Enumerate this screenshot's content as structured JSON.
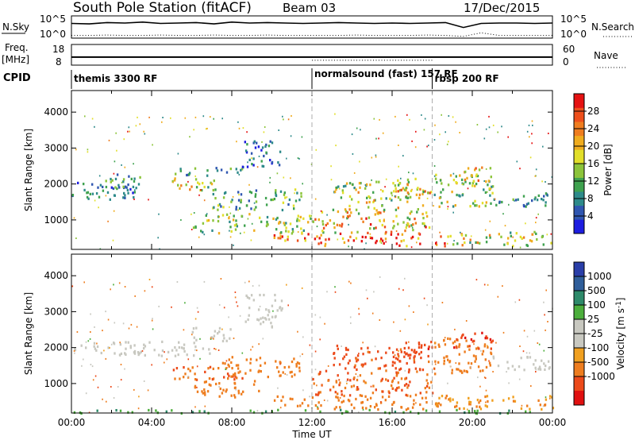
{
  "header": {
    "title": "South Pole Station (fitACF)",
    "beam": "Beam 03",
    "date": "17/Dec/2015"
  },
  "chart_data": [
    {
      "type": "line",
      "panel": "noise",
      "left_label": "N.Sky",
      "right_label": "N.Search",
      "left_ticks": [
        "10^5",
        "10^0"
      ],
      "right_ticks": [
        "10^5",
        "10^0"
      ],
      "series": [
        {
          "name": "N.Sky",
          "style": "solid"
        },
        {
          "name": "N.Search",
          "style": "dotted"
        }
      ],
      "sky_level": [
        3.3,
        3.2,
        3.5,
        3.4,
        3.6,
        3.3,
        3.4,
        3.5,
        3.2,
        3.6,
        3.4,
        3.5,
        3.4,
        3.3,
        3.4,
        3.5,
        3.4,
        3.3,
        3.4,
        3.3,
        3.4,
        3.5,
        2.4,
        3.3,
        3.4,
        3.4,
        3.3,
        3.4
      ],
      "search_level": [
        0.6,
        0.6,
        0.7,
        0.6,
        0.6,
        0.7,
        0.6,
        0.6,
        0.7,
        0.6,
        0.6,
        0.7,
        0.6,
        0.6,
        0.6,
        0.6,
        0.7,
        0.6,
        0.6,
        0.6,
        0.7,
        0.6,
        0.4,
        1.2,
        0.6,
        0.6,
        0.6,
        0.6
      ]
    },
    {
      "type": "line",
      "panel": "frequency",
      "left_label_1": "Freq.",
      "left_label_2": "[MHz]",
      "right_label": "Nave",
      "left_ticks": [
        "18",
        "8"
      ],
      "right_ticks": [
        "60",
        "0"
      ],
      "freq_mhz": 11.9,
      "nave_segments": [
        {
          "from_hour": 0,
          "to_hour": 12,
          "value": 23
        },
        {
          "from_hour": 12,
          "to_hour": 18,
          "value": 14
        },
        {
          "from_hour": 18,
          "to_hour": 24,
          "value": 23
        }
      ]
    },
    {
      "type": "table",
      "panel": "cpid",
      "label": "CPID",
      "segments": [
        {
          "name": "themis 3300 RF",
          "start_hour": 0
        },
        {
          "name": "normalsound (fast) 157 RF",
          "start_hour": 12
        },
        {
          "name": "rbsp 200 RF",
          "start_hour": 18
        }
      ]
    },
    {
      "type": "heatmap",
      "panel": "power",
      "ylabel": "Slant Range [km]",
      "yticks": [
        1000,
        2000,
        3000,
        4000
      ],
      "ylim": [
        180,
        4600
      ],
      "xlim": [
        0,
        24
      ],
      "colorbar": {
        "label": "Power [dB]",
        "ticks": [
          "4",
          "8",
          "12",
          "16",
          "20",
          "24",
          "28"
        ],
        "colors": [
          "#1d1de0",
          "#2f56b0",
          "#2e8a8a",
          "#3fa24f",
          "#8cc43a",
          "#e2df2a",
          "#f0ac1e",
          "#ef7d1f",
          "#ee4f1c",
          "#e51212"
        ]
      },
      "features": [
        {
          "t0": 0.0,
          "t1": 3.2,
          "r0": 1550,
          "r1": 2100,
          "value": 7
        },
        {
          "t0": 1.4,
          "t1": 3.8,
          "r0": 1900,
          "r1": 2300,
          "value": 8
        },
        {
          "t0": 4.3,
          "t1": 7.1,
          "r0": 1850,
          "r1": 2200,
          "value": 15
        },
        {
          "t0": 5.0,
          "t1": 8.5,
          "r0": 2250,
          "r1": 2500,
          "value": 9
        },
        {
          "t0": 7.0,
          "t1": 11.5,
          "r0": 1300,
          "r1": 1900,
          "value": 10
        },
        {
          "t0": 6.0,
          "t1": 11.9,
          "r0": 650,
          "r1": 1200,
          "value": 13
        },
        {
          "t0": 8.5,
          "t1": 10.5,
          "r0": 2500,
          "r1": 3300,
          "value": 7
        },
        {
          "t0": 10.0,
          "t1": 11.9,
          "r0": 400,
          "r1": 700,
          "value": 22
        },
        {
          "t0": 12.0,
          "t1": 17.5,
          "r0": 300,
          "r1": 650,
          "value": 27
        },
        {
          "t0": 12.0,
          "t1": 18.0,
          "r0": 650,
          "r1": 1300,
          "value": 19
        },
        {
          "t0": 13.0,
          "t1": 17.5,
          "r0": 1300,
          "r1": 2100,
          "value": 15
        },
        {
          "t0": 16.0,
          "t1": 18.0,
          "r0": 1600,
          "r1": 2200,
          "value": 18
        },
        {
          "t0": 18.0,
          "t1": 19.0,
          "r0": 300,
          "r1": 600,
          "value": 27
        },
        {
          "t0": 18.0,
          "t1": 21.0,
          "r0": 1400,
          "r1": 2300,
          "value": 14
        },
        {
          "t0": 19.0,
          "t1": 21.0,
          "r0": 2000,
          "r1": 2500,
          "value": 18
        },
        {
          "t0": 21.0,
          "t1": 24.0,
          "r0": 1400,
          "r1": 1800,
          "value": 8
        },
        {
          "t0": 19.0,
          "t1": 24.0,
          "r0": 300,
          "r1": 700,
          "value": 16
        }
      ]
    },
    {
      "type": "heatmap",
      "panel": "velocity",
      "xlabel": "Time UT",
      "ylabel": "Slant Range [km]",
      "xticks": [
        "00:00",
        "04:00",
        "08:00",
        "12:00",
        "16:00",
        "20:00",
        "00:00"
      ],
      "yticks": [
        1000,
        2000,
        3000,
        4000
      ],
      "ylim": [
        180,
        4600
      ],
      "xlim": [
        0,
        24
      ],
      "colorbar": {
        "label": "Velocity [m s^-1]",
        "ticks": [
          "1000",
          "500",
          "100",
          "25",
          "-25",
          "-100",
          "-500",
          "-1000"
        ],
        "colors": [
          "#2a3ea8",
          "#2f5e9a",
          "#2e8a6a",
          "#4cae3c",
          "#c8c8c0",
          "#c8c8c0",
          "#f0a020",
          "#ee7d1f",
          "#ec4a1a",
          "#e01010"
        ]
      },
      "features": [
        {
          "t0": 0.0,
          "t1": 7.0,
          "r0": 1800,
          "r1": 2200,
          "value": 0
        },
        {
          "t0": 6.0,
          "t1": 8.0,
          "r0": 2200,
          "r1": 2600,
          "value": 10
        },
        {
          "t0": 5.0,
          "t1": 8.5,
          "r0": 1100,
          "r1": 1500,
          "value": -300
        },
        {
          "t0": 6.0,
          "t1": 9.5,
          "r0": 650,
          "r1": 1100,
          "value": -200
        },
        {
          "t0": 7.5,
          "t1": 11.5,
          "r0": 1200,
          "r1": 1800,
          "value": -150
        },
        {
          "t0": 8.5,
          "t1": 10.5,
          "r0": 2600,
          "r1": 3500,
          "value": 0
        },
        {
          "t0": 10.0,
          "t1": 12.0,
          "r0": 400,
          "r1": 700,
          "value": -120
        },
        {
          "t0": 12.0,
          "t1": 17.8,
          "r0": 300,
          "r1": 700,
          "value": -200
        },
        {
          "t0": 12.0,
          "t1": 18.0,
          "r0": 700,
          "r1": 1400,
          "value": -300
        },
        {
          "t0": 13.0,
          "t1": 17.8,
          "r0": 1400,
          "r1": 2100,
          "value": -400
        },
        {
          "t0": 16.0,
          "t1": 18.0,
          "r0": 1600,
          "r1": 2200,
          "value": -600
        },
        {
          "t0": 18.0,
          "t1": 21.0,
          "r0": 1300,
          "r1": 2300,
          "value": -200
        },
        {
          "t0": 19.0,
          "t1": 21.0,
          "r0": 2000,
          "r1": 2500,
          "value": -700
        },
        {
          "t0": 21.0,
          "t1": 24.0,
          "r0": 1400,
          "r1": 1800,
          "value": 0
        },
        {
          "t0": 18.0,
          "t1": 24.0,
          "r0": 300,
          "r1": 700,
          "value": -60
        },
        {
          "t0": 0.0,
          "t1": 24.0,
          "r0": 200,
          "r1": 300,
          "value": 50
        }
      ]
    }
  ]
}
